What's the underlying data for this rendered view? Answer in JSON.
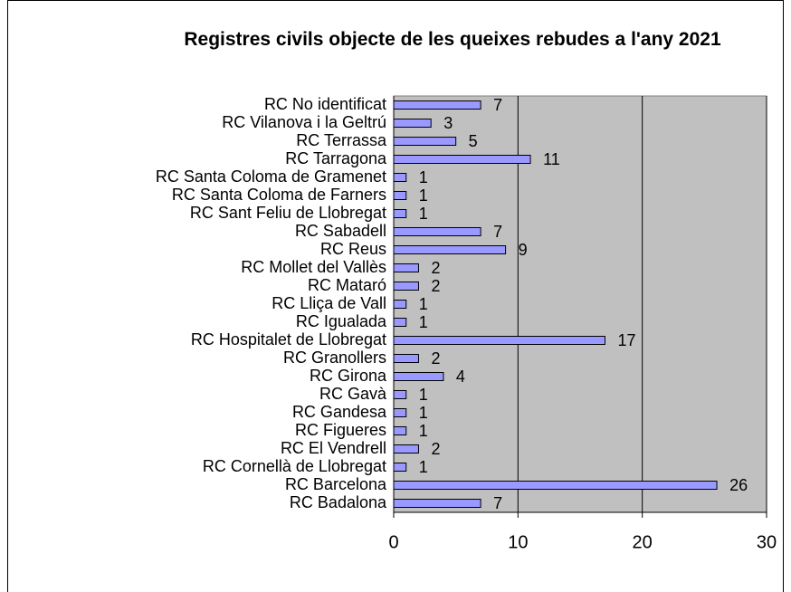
{
  "chart_data": {
    "type": "bar",
    "orientation": "horizontal",
    "title": "Registres civils objecte de les queixes rebudes a l'any 2021",
    "categories": [
      "RC No identificat",
      "RC Vilanova i la Geltrú",
      "RC Terrassa",
      "RC Tarragona",
      "RC Santa Coloma de Gramenet",
      "RC Santa Coloma de Farners",
      "RC Sant Feliu de Llobregat",
      "RC Sabadell",
      "RC Reus",
      "RC Mollet del Vallès",
      "RC Mataró",
      "RC Lliça de Vall",
      "RC Igualada",
      "RC Hospitalet de Llobregat",
      "RC Granollers",
      "RC Girona",
      "RC Gavà",
      "RC Gandesa",
      "RC Figueres",
      "RC El Vendrell",
      "RC Cornellà de Llobregat",
      "RC Barcelona",
      "RC Badalona"
    ],
    "values": [
      7,
      3,
      5,
      11,
      1,
      1,
      1,
      7,
      9,
      2,
      2,
      1,
      1,
      17,
      2,
      4,
      1,
      1,
      1,
      2,
      1,
      26,
      7
    ],
    "color": "#9999ff",
    "background": "#c0c0c0",
    "xlim": [
      0,
      30
    ],
    "xticks": [
      0,
      10,
      20,
      30
    ],
    "grid": true
  }
}
